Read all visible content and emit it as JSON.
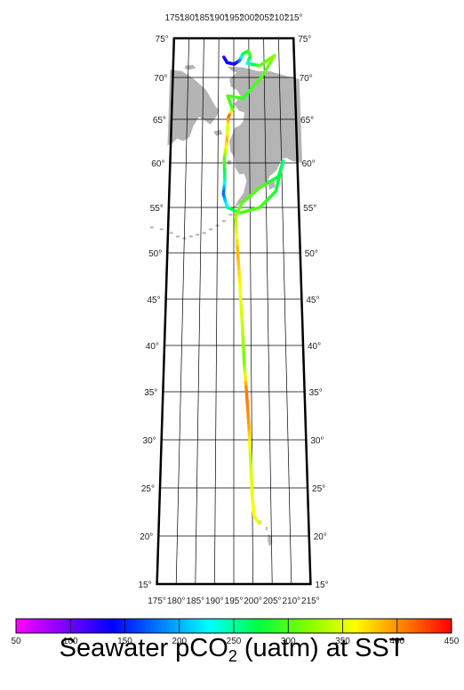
{
  "map": {
    "projection": "conic",
    "lon_range": [
      175,
      215
    ],
    "lat_range": [
      15,
      75
    ],
    "lon_ticks_top": [
      "175°",
      "180°",
      "185°",
      "190°",
      "195°",
      "200°",
      "205°",
      "210°",
      "215°"
    ],
    "lon_ticks_bottom": [
      "175°",
      "180°",
      "185°",
      "190°",
      "195°",
      "200°",
      "205°",
      "210°",
      "215°"
    ],
    "lat_ticks_left": [
      "75°",
      "70°",
      "65°",
      "60°",
      "55°",
      "50°",
      "45°",
      "40°",
      "35°",
      "30°",
      "25°",
      "20°",
      "15°"
    ],
    "lat_ticks_right": [
      "75°",
      "70°",
      "65°",
      "60°",
      "55°",
      "50°",
      "45°",
      "40°",
      "35°",
      "30°",
      "25°",
      "20°",
      "15°"
    ],
    "land_color": "#b4b4b4",
    "grid": true
  },
  "track": {
    "description_values": "ship track colored by seawater pCO2",
    "segments": [
      {
        "lon": 191.7,
        "lat": 72.6,
        "pco2": 110
      },
      {
        "lon": 192.8,
        "lat": 71.9,
        "pco2": 150
      },
      {
        "lon": 195.2,
        "lat": 71.7,
        "pco2": 120
      },
      {
        "lon": 197.0,
        "lat": 72.2,
        "pco2": 170
      },
      {
        "lon": 198.0,
        "lat": 73.0,
        "pco2": 260
      },
      {
        "lon": 199.8,
        "lat": 73.4,
        "pco2": 290
      },
      {
        "lon": 200.5,
        "lat": 72.7,
        "pco2": 300
      },
      {
        "lon": 199.5,
        "lat": 71.8,
        "pco2": 230
      },
      {
        "lon": 203.5,
        "lat": 71.5,
        "pco2": 300
      },
      {
        "lon": 208.5,
        "lat": 72.8,
        "pco2": 320
      },
      {
        "lon": 204.0,
        "lat": 70.0,
        "pco2": 300
      },
      {
        "lon": 198.0,
        "lat": 67.5,
        "pco2": 290
      },
      {
        "lon": 193.0,
        "lat": 67.8,
        "pco2": 300
      },
      {
        "lon": 194.6,
        "lat": 66.2,
        "pco2": 290
      },
      {
        "lon": 193.3,
        "lat": 65.3,
        "pco2": 420
      },
      {
        "lon": 193.0,
        "lat": 63.8,
        "pco2": 340
      },
      {
        "lon": 192.8,
        "lat": 62.5,
        "pco2": 390
      },
      {
        "lon": 192.0,
        "lat": 60.5,
        "pco2": 310
      },
      {
        "lon": 192.2,
        "lat": 58.0,
        "pco2": 250
      },
      {
        "lon": 191.8,
        "lat": 56.5,
        "pco2": 170
      },
      {
        "lon": 193.0,
        "lat": 55.0,
        "pco2": 240
      },
      {
        "lon": 197.0,
        "lat": 54.4,
        "pco2": 300
      },
      {
        "lon": 203.0,
        "lat": 55.0,
        "pco2": 300
      },
      {
        "lon": 208.0,
        "lat": 56.8,
        "pco2": 280
      },
      {
        "lon": 210.5,
        "lat": 60.2,
        "pco2": 260
      },
      {
        "lon": 209.0,
        "lat": 58.5,
        "pco2": 270
      },
      {
        "lon": 203.0,
        "lat": 57.2,
        "pco2": 300
      },
      {
        "lon": 197.5,
        "lat": 55.5,
        "pco2": 300
      },
      {
        "lon": 195.5,
        "lat": 54.0,
        "pco2": 320
      },
      {
        "lon": 196.2,
        "lat": 50.0,
        "pco2": 390
      },
      {
        "lon": 196.9,
        "lat": 46.0,
        "pco2": 360
      },
      {
        "lon": 197.5,
        "lat": 42.0,
        "pco2": 340
      },
      {
        "lon": 198.0,
        "lat": 38.0,
        "pco2": 310
      },
      {
        "lon": 198.6,
        "lat": 35.0,
        "pco2": 410
      },
      {
        "lon": 199.2,
        "lat": 31.5,
        "pco2": 395
      },
      {
        "lon": 199.6,
        "lat": 28.0,
        "pco2": 340
      },
      {
        "lon": 200.0,
        "lat": 24.0,
        "pco2": 355
      },
      {
        "lon": 200.5,
        "lat": 22.0,
        "pco2": 360
      },
      {
        "lon": 201.8,
        "lat": 21.3,
        "pco2": 350
      }
    ]
  },
  "colorbar": {
    "min": 50,
    "max": 450,
    "tick_labels": [
      "50",
      "100",
      "150",
      "200",
      "250",
      "300",
      "350",
      "400",
      "450"
    ],
    "colors": [
      "#ff00ff",
      "#7f00ff",
      "#0000ff",
      "#0080ff",
      "#00ffff",
      "#00ff40",
      "#80ff00",
      "#ffff00",
      "#ff8000",
      "#ff0000"
    ]
  },
  "title": {
    "prefix": "Seawater pCO",
    "sub": "2",
    "suffix": " (uatm) at SST"
  }
}
